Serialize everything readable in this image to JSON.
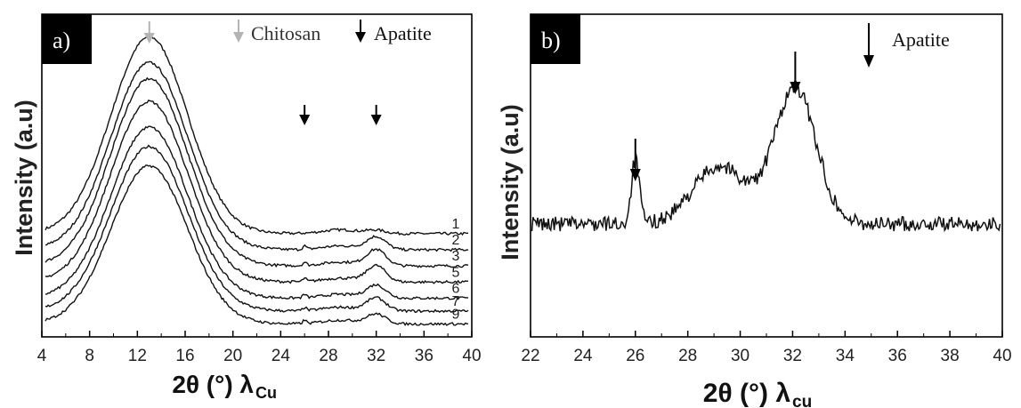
{
  "chart_data": [
    {
      "type": "line",
      "panel_label": "a)",
      "xlabel": "2θ (°) λ",
      "xlabel_sub": "Cu",
      "ylabel": "Intensity (a.u)",
      "xlim": [
        4,
        40
      ],
      "xticks": [
        "4",
        "8",
        "12",
        "16",
        "20",
        "24",
        "28",
        "32",
        "36",
        "40"
      ],
      "legend": [
        {
          "label": "Chitosan",
          "color": "#b4b4b4"
        },
        {
          "label": "Apatite",
          "color": "#000000"
        }
      ],
      "marker_peaks": [
        {
          "x": 13.0,
          "color": "#b4b4b4"
        },
        {
          "x": 26.0,
          "color": "#000000"
        },
        {
          "x": 32.0,
          "color": "#000000"
        }
      ],
      "series": [
        {
          "name": "1",
          "baseline_y": 0.26,
          "peak_y": 0.87,
          "peak_x": 13.0,
          "apatite26": 0.0,
          "apatite32": 0.01
        },
        {
          "name": "2",
          "baseline_y": 0.21,
          "peak_y": 0.79,
          "peak_x": 13.0,
          "apatite26": 0.01,
          "apatite32": 0.04
        },
        {
          "name": "3",
          "baseline_y": 0.16,
          "peak_y": 0.74,
          "peak_x": 13.0,
          "apatite26": 0.01,
          "apatite32": 0.05
        },
        {
          "name": "5",
          "baseline_y": 0.11,
          "peak_y": 0.67,
          "peak_x": 13.0,
          "apatite26": 0.01,
          "apatite32": 0.05
        },
        {
          "name": "6",
          "baseline_y": 0.06,
          "peak_y": 0.59,
          "peak_x": 13.0,
          "apatite26": 0.01,
          "apatite32": 0.04
        },
        {
          "name": "7",
          "baseline_y": 0.02,
          "peak_y": 0.53,
          "peak_x": 13.0,
          "apatite26": 0.01,
          "apatite32": 0.04
        },
        {
          "name": "9",
          "baseline_y": -0.02,
          "peak_y": 0.47,
          "peak_x": 13.0,
          "apatite26": 0.01,
          "apatite32": 0.03
        }
      ]
    },
    {
      "type": "line",
      "panel_label": "b)",
      "xlabel": "2θ (°) λ",
      "xlabel_sub": "cu",
      "ylabel": "Intensity (a.u)",
      "xlim": [
        22,
        40
      ],
      "xticks": [
        "22",
        "24",
        "26",
        "28",
        "30",
        "32",
        "34",
        "36",
        "38",
        "40"
      ],
      "legend": [
        {
          "label": "Apatite",
          "color": "#000000"
        }
      ],
      "marker_peaks": [
        {
          "x": 26.0,
          "color": "#000000"
        },
        {
          "x": 32.1,
          "color": "#000000"
        }
      ],
      "series": [
        {
          "name": "",
          "baseline_y": 0.35,
          "peaks": [
            {
              "x": 26.0,
              "height": 0.2,
              "width": 0.15
            },
            {
              "x": 29.2,
              "height": 0.18,
              "width": 1.0
            },
            {
              "x": 32.1,
              "height": 0.42,
              "width": 0.8
            }
          ]
        }
      ]
    }
  ]
}
